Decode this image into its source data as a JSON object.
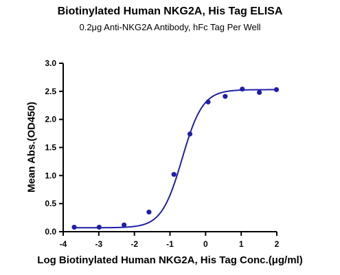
{
  "chart_data": {
    "type": "scatter",
    "title": "Biotinylated Human NKG2A, His Tag ELISA",
    "subtitle": "0.2μg Anti-NKG2A Antibody, hFc Tag Per Well",
    "xlabel": "Log Biotinylated Human NKG2A, His Tag Conc.(μg/ml)",
    "ylabel": "Mean Abs.(OD450)",
    "xlim": [
      -4,
      2
    ],
    "ylim": [
      0,
      3.0
    ],
    "xticks": [
      "-4",
      "-3",
      "-2",
      "-1",
      "0",
      "1",
      "2"
    ],
    "yticks": [
      "0.0",
      "0.5",
      "1.0",
      "1.5",
      "2.0",
      "2.5",
      "3.0"
    ],
    "grid": false,
    "series": [
      {
        "color": "#1f1fa8",
        "points": [
          {
            "x": -3.69,
            "y": 0.08
          },
          {
            "x": -2.99,
            "y": 0.08
          },
          {
            "x": -2.29,
            "y": 0.12
          },
          {
            "x": -1.59,
            "y": 0.35
          },
          {
            "x": -0.89,
            "y": 1.02
          },
          {
            "x": -0.44,
            "y": 1.74
          },
          {
            "x": 0.07,
            "y": 2.31
          },
          {
            "x": 0.55,
            "y": 2.41
          },
          {
            "x": 1.03,
            "y": 2.54
          },
          {
            "x": 1.51,
            "y": 2.48
          },
          {
            "x": 1.99,
            "y": 2.53
          }
        ],
        "fit": {
          "bottom": 0.07,
          "top": 2.53,
          "log_ec50": -0.66,
          "hill_slope": 1.5
        }
      }
    ]
  }
}
